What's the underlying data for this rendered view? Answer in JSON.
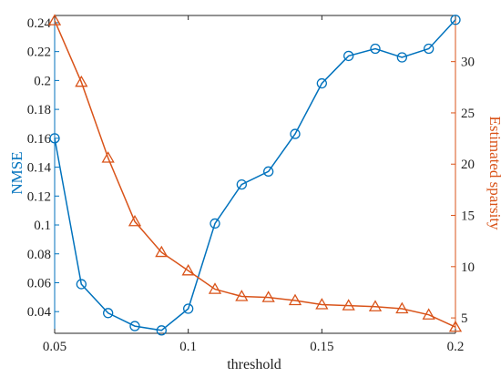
{
  "chart_data": {
    "type": "line",
    "xlabel": "threshold",
    "ylabel_left": "NMSE",
    "ylabel_right": "Estimated sparsity",
    "xlim": [
      0.05,
      0.2
    ],
    "ylim_left": [
      0.025,
      0.245
    ],
    "ylim_right": [
      3.5,
      34.5
    ],
    "x_ticks": [
      "0.05",
      "0.1",
      "0.15",
      "0.2"
    ],
    "x_tick_values": [
      0.05,
      0.1,
      0.15,
      0.2
    ],
    "y_left_ticks": [
      "0.04",
      "0.06",
      "0.08",
      "0.1",
      "0.12",
      "0.14",
      "0.16",
      "0.18",
      "0.2",
      "0.22",
      "0.24"
    ],
    "y_left_tick_values": [
      0.04,
      0.06,
      0.08,
      0.1,
      0.12,
      0.14,
      0.16,
      0.18,
      0.2,
      0.22,
      0.24
    ],
    "y_right_ticks": [
      "5",
      "10",
      "15",
      "20",
      "25",
      "30"
    ],
    "y_right_tick_values": [
      5,
      10,
      15,
      20,
      25,
      30
    ],
    "grid": false,
    "x": [
      0.05,
      0.06,
      0.07,
      0.08,
      0.09,
      0.1,
      0.11,
      0.12,
      0.13,
      0.14,
      0.15,
      0.16,
      0.17,
      0.18,
      0.19,
      0.2
    ],
    "series": [
      {
        "axis": "left",
        "marker": "circle",
        "color": "#0072BD",
        "values": [
          0.16,
          0.059,
          0.039,
          0.03,
          0.027,
          0.042,
          0.101,
          0.128,
          0.137,
          0.163,
          0.198,
          0.217,
          0.222,
          0.216,
          0.222,
          0.242
        ]
      },
      {
        "axis": "right",
        "marker": "triangle",
        "color": "#D95319",
        "values": [
          34,
          28,
          20.6,
          14.4,
          11.4,
          9.6,
          7.8,
          7.1,
          7.0,
          6.7,
          6.3,
          6.2,
          6.1,
          5.9,
          5.3,
          4.1
        ]
      }
    ]
  }
}
